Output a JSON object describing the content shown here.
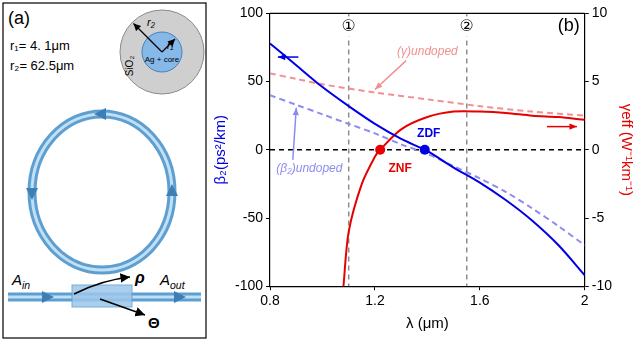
{
  "diagram": {
    "panel_label": "(a)",
    "parameters": [
      "r₁= 4. 1μm",
      "r₂= 62.5μm"
    ],
    "cross_section": {
      "cladding": "SiO₂",
      "core": "Ag + core",
      "inner_radius": "r₁",
      "outer_radius": "r₂"
    },
    "input": {
      "base": "A",
      "sub": "in"
    },
    "output": {
      "base": "A",
      "sub": "out"
    },
    "coupler": {
      "rho": "ρ",
      "theta": "Θ"
    }
  },
  "chart_data": {
    "type": "line",
    "panel_label": "(b)",
    "x_label": "λ (μm)",
    "y_label": "β₂(ps²/km)",
    "y2_label": "γeff (W⁻¹km⁻¹)",
    "xlim": [
      0.8,
      2
    ],
    "xticks": [
      0.8,
      1.2,
      1.6,
      2
    ],
    "ylim": [
      -100,
      100
    ],
    "yticks": [
      -100,
      -50,
      0,
      50,
      100
    ],
    "y2lim": [
      -10,
      10
    ],
    "y2ticks": [
      -10,
      -5,
      0,
      5,
      10
    ],
    "series": [
      {
        "color": "#0000e6",
        "line_style": "solid",
        "axis": "y",
        "x": [
          0.8,
          0.9,
          1.0,
          1.1,
          1.2,
          1.3,
          1.4,
          1.5,
          1.6,
          1.7,
          1.8,
          1.9,
          2.0
        ],
        "values": [
          78,
          62,
          46,
          32,
          19,
          8,
          -1,
          -13,
          -24,
          -37,
          -52,
          -70,
          -92
        ]
      },
      {
        "name": "(β₂)undoped",
        "color": "#8c8cf0",
        "line_style": "dashed",
        "axis": "y",
        "x": [
          0.8,
          0.9,
          1.0,
          1.1,
          1.2,
          1.3,
          1.4,
          1.5,
          1.6,
          1.7,
          1.8,
          1.9,
          2.0
        ],
        "values": [
          40,
          33,
          26,
          19,
          12,
          4,
          -3,
          -12,
          -21,
          -31,
          -43,
          -56,
          -70
        ]
      },
      {
        "color": "#e60000",
        "line_style": "solid",
        "axis": "y2",
        "x": [
          1.08,
          1.1,
          1.15,
          1.2,
          1.22,
          1.3,
          1.4,
          1.5,
          1.6,
          1.7,
          1.8,
          1.9,
          2.0
        ],
        "values": [
          -10,
          -6,
          -2.5,
          -0.5,
          0,
          1.5,
          2.4,
          2.8,
          2.8,
          2.7,
          2.5,
          2.4,
          2.2
        ]
      },
      {
        "name": "(γ)undoped",
        "color": "#f29090",
        "line_style": "dashed",
        "axis": "y2",
        "x": [
          0.8,
          0.9,
          1.0,
          1.2,
          1.4,
          1.6,
          1.8,
          2.0
        ],
        "values": [
          5.6,
          5.2,
          4.8,
          4.2,
          3.7,
          3.2,
          2.8,
          2.5
        ]
      }
    ],
    "reference_line": {
      "y": 0,
      "line_style": "dashed"
    },
    "vertical_lines": [
      {
        "x": 1.1,
        "label": "①"
      },
      {
        "x": 1.55,
        "label": "②"
      }
    ],
    "points": [
      {
        "label": "ZDF",
        "x": 1.39,
        "y": 0,
        "axis": "y",
        "color": "#0000e6"
      },
      {
        "label": "ZNF",
        "x": 1.22,
        "y": 0,
        "axis": "y2",
        "color": "#e60000"
      }
    ]
  }
}
